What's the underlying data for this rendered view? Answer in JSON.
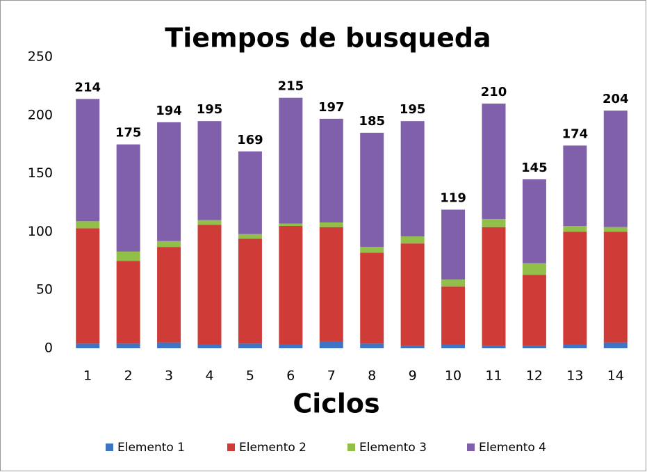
{
  "chart_data": {
    "type": "stacked_bar",
    "title": "Tiempos de busqueda",
    "x_label": "Ciclos",
    "categories": [
      "1",
      "2",
      "3",
      "4",
      "5",
      "6",
      "7",
      "8",
      "9",
      "10",
      "11",
      "12",
      "13",
      "14"
    ],
    "series": [
      {
        "name": "Elemento 1",
        "color": "#3f74c4",
        "values": [
          4,
          4,
          5,
          3,
          4,
          3,
          6,
          4,
          2,
          3,
          2,
          2,
          3,
          5
        ]
      },
      {
        "name": "Elemento 2",
        "color": "#cf3b37",
        "values": [
          99,
          71,
          82,
          103,
          90,
          102,
          98,
          78,
          88,
          50,
          102,
          61,
          97,
          95
        ]
      },
      {
        "name": "Elemento 3",
        "color": "#92be4a",
        "values": [
          6,
          8,
          5,
          4,
          4,
          2,
          4,
          5,
          6,
          6,
          7,
          10,
          5,
          4
        ]
      },
      {
        "name": "Elemento 4",
        "color": "#8160ab",
        "values": [
          105,
          92,
          102,
          85,
          71,
          108,
          89,
          98,
          99,
          60,
          99,
          72,
          69,
          100
        ]
      }
    ],
    "totals": [
      214,
      175,
      194,
      195,
      169,
      215,
      197,
      185,
      195,
      119,
      210,
      145,
      174,
      204
    ],
    "ylim": [
      0,
      250
    ],
    "yticks": [
      0,
      50,
      100,
      150,
      200,
      250
    ],
    "grid": false,
    "legend": "bottom"
  }
}
